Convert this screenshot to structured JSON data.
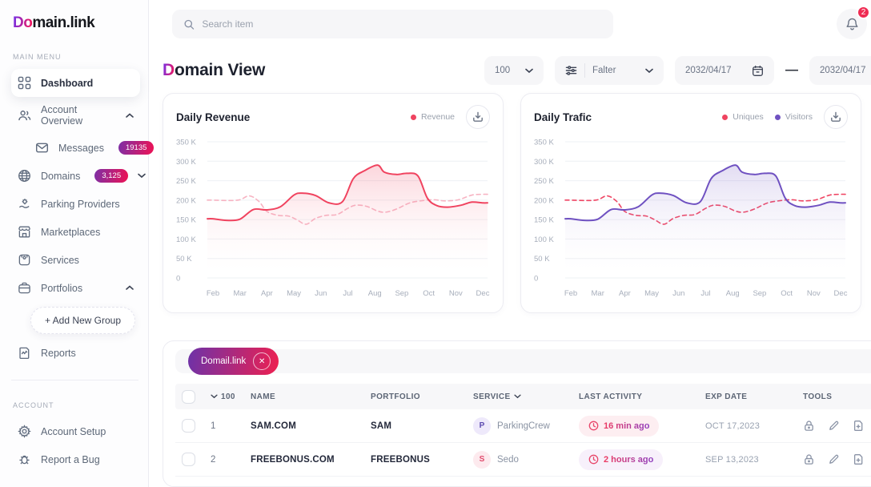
{
  "sidebar": {
    "logo_prefix": "Do",
    "logo_suffix": "main.link",
    "section_main": "MAIN MENU",
    "section_account": "ACCOUNT",
    "items": {
      "dashboard": "Dashboard",
      "account_overview": "Account Overview",
      "messages": "Messages",
      "messages_badge": "19135",
      "domains": "Domains",
      "domains_badge": "3,125",
      "parking": "Parking Providers",
      "marketplaces": "Marketplaces",
      "services": "Services",
      "portfolios": "Portfolios",
      "add_group": "+ Add New Group",
      "reports": "Reports",
      "account_setup": "Account Setup",
      "report_bug": "Report a Bug"
    }
  },
  "topbar": {
    "search_placeholder": "Search item",
    "notification_count": "2"
  },
  "page": {
    "title_d": "D",
    "title_rest": "omain View",
    "page_size": "100",
    "filter_label": "Falter",
    "date_from": "2032/04/17",
    "date_sep": "—",
    "date_to": "2032/04/17"
  },
  "chart_data": [
    {
      "type": "area",
      "title": "Daily Revenue",
      "x_labels": [
        "Feb",
        "Mar",
        "Apr",
        "May",
        "Jun",
        "Jul",
        "Aug",
        "Sep",
        "Oct",
        "Nov",
        "Dec"
      ],
      "y_tick_labels": [
        "350 K",
        "300 K",
        "250 K",
        "200 K",
        "150 K",
        "100 K",
        "50 K",
        "0"
      ],
      "y_max": 350,
      "legend": [
        {
          "name": "Revenue",
          "color": "#ef4460"
        }
      ],
      "series": [
        {
          "name": "Revenue",
          "style": "solid",
          "color": "#f0435f",
          "fill": "rgba(240,67,95,0.22)",
          "points": [
            [
              0,
              152
            ],
            [
              0.5,
              148
            ],
            [
              1,
              151
            ],
            [
              1.5,
              176
            ],
            [
              2,
              175
            ],
            [
              2.5,
              183
            ],
            [
              3,
              213
            ],
            [
              3.3,
              218
            ],
            [
              3.8,
              212
            ],
            [
              4.3,
              193
            ],
            [
              4.8,
              196
            ],
            [
              5.2,
              255
            ],
            [
              5.6,
              275
            ],
            [
              6.1,
              290
            ],
            [
              6.35,
              272
            ],
            [
              6.8,
              266
            ],
            [
              7.2,
              269
            ],
            [
              7.6,
              262
            ],
            [
              7.95,
              205
            ],
            [
              8.3,
              186
            ],
            [
              8.7,
              182
            ],
            [
              9.2,
              187
            ],
            [
              9.6,
              195
            ],
            [
              10,
              193
            ]
          ]
        },
        {
          "name": "Revenue (dashed)",
          "style": "dashed",
          "color": "#f7b3c2",
          "points": [
            [
              0,
              200
            ],
            [
              0.6,
              199
            ],
            [
              1,
              201
            ],
            [
              1.35,
              211
            ],
            [
              1.7,
              197
            ],
            [
              2,
              171
            ],
            [
              2.4,
              161
            ],
            [
              2.8,
              159
            ],
            [
              3.1,
              150
            ],
            [
              3.45,
              138
            ],
            [
              3.8,
              153
            ],
            [
              4.2,
              161
            ],
            [
              4.6,
              163
            ],
            [
              5,
              179
            ],
            [
              5.3,
              187
            ],
            [
              5.7,
              184
            ],
            [
              6.1,
              172
            ],
            [
              6.4,
              169
            ],
            [
              6.8,
              177
            ],
            [
              7.3,
              193
            ],
            [
              7.8,
              199
            ],
            [
              8.2,
              201
            ],
            [
              8.6,
              198
            ],
            [
              9.1,
              201
            ],
            [
              9.6,
              213
            ],
            [
              10,
              215
            ]
          ]
        }
      ]
    },
    {
      "type": "area",
      "title": "Daily Trafic",
      "x_labels": [
        "Feb",
        "Mar",
        "Apr",
        "May",
        "Jun",
        "Jul",
        "Aug",
        "Sep",
        "Oct",
        "Nov",
        "Dec"
      ],
      "y_tick_labels": [
        "350 K",
        "300 K",
        "250 K",
        "200 K",
        "150 K",
        "100 K",
        "50 K",
        "0"
      ],
      "y_max": 350,
      "legend": [
        {
          "name": "Uniques",
          "color": "#ef4460"
        },
        {
          "name": "Visitors",
          "color": "#6f51c1"
        }
      ],
      "series": [
        {
          "name": "Visitors",
          "style": "solid",
          "color": "#6f51c1",
          "fill": "rgba(111,81,193,0.20)",
          "points": [
            [
              0,
              152
            ],
            [
              0.5,
              148
            ],
            [
              1,
              151
            ],
            [
              1.5,
              176
            ],
            [
              2,
              175
            ],
            [
              2.5,
              183
            ],
            [
              3,
              213
            ],
            [
              3.3,
              218
            ],
            [
              3.8,
              212
            ],
            [
              4.3,
              193
            ],
            [
              4.8,
              196
            ],
            [
              5.2,
              255
            ],
            [
              5.6,
              275
            ],
            [
              6.1,
              290
            ],
            [
              6.35,
              272
            ],
            [
              6.8,
              266
            ],
            [
              7.2,
              269
            ],
            [
              7.6,
              262
            ],
            [
              7.95,
              205
            ],
            [
              8.3,
              186
            ],
            [
              8.7,
              182
            ],
            [
              9.2,
              187
            ],
            [
              9.6,
              195
            ],
            [
              10,
              193
            ]
          ]
        },
        {
          "name": "Uniques",
          "style": "dashed",
          "color": "#ef4563",
          "points": [
            [
              0,
              200
            ],
            [
              0.6,
              199
            ],
            [
              1,
              201
            ],
            [
              1.35,
              211
            ],
            [
              1.7,
              197
            ],
            [
              2,
              171
            ],
            [
              2.4,
              161
            ],
            [
              2.8,
              159
            ],
            [
              3.1,
              150
            ],
            [
              3.45,
              138
            ],
            [
              3.8,
              153
            ],
            [
              4.2,
              161
            ],
            [
              4.6,
              163
            ],
            [
              5,
              179
            ],
            [
              5.3,
              187
            ],
            [
              5.7,
              184
            ],
            [
              6.1,
              172
            ],
            [
              6.4,
              169
            ],
            [
              6.8,
              177
            ],
            [
              7.3,
              193
            ],
            [
              7.8,
              199
            ],
            [
              8.2,
              201
            ],
            [
              8.6,
              198
            ],
            [
              9.1,
              201
            ],
            [
              9.6,
              213
            ],
            [
              10,
              215
            ]
          ]
        }
      ]
    }
  ],
  "table": {
    "filter_chip": "Domail.link",
    "columns": {
      "count": "100",
      "name": "NAME",
      "portfolio": "PORTFOLIO",
      "service": "SERVICE",
      "last_activity": "LAST ACTIVITY",
      "exp_date": "EXP DATE",
      "tools": "TOOLS"
    },
    "rows": [
      {
        "num": "1",
        "name": "SAM.COM",
        "portfolio": "SAM",
        "service_initial": "P",
        "service": "ParkingCrew",
        "last_activity": "16 min ago",
        "exp_date": "OCT 17,2023"
      },
      {
        "num": "2",
        "name": "FREEBONUS.COM",
        "portfolio": "FREEBONUS",
        "service_initial": "S",
        "service": "Sedo",
        "last_activity": "2 hours ago",
        "exp_date": "SEP 13,2023"
      }
    ]
  }
}
